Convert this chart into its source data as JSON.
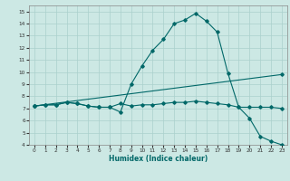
{
  "xlabel": "Humidex (Indice chaleur)",
  "xlim": [
    -0.5,
    23.5
  ],
  "ylim": [
    4,
    15.5
  ],
  "xticks": [
    0,
    1,
    2,
    3,
    4,
    5,
    6,
    7,
    8,
    9,
    10,
    11,
    12,
    13,
    14,
    15,
    16,
    17,
    18,
    19,
    20,
    21,
    22,
    23
  ],
  "yticks": [
    4,
    5,
    6,
    7,
    8,
    9,
    10,
    11,
    12,
    13,
    14,
    15
  ],
  "bg_color": "#cce8e4",
  "grid_color": "#aad0cc",
  "line_color": "#006868",
  "line1_x": [
    0,
    1,
    2,
    3,
    4,
    5,
    6,
    7,
    8,
    9,
    10,
    11,
    12,
    13,
    14,
    15,
    16,
    17,
    18,
    19,
    20,
    21,
    22,
    23
  ],
  "line1_y": [
    7.2,
    7.3,
    7.3,
    7.5,
    7.4,
    7.2,
    7.1,
    7.1,
    6.7,
    9.0,
    10.5,
    11.8,
    12.7,
    14.0,
    14.3,
    14.85,
    14.2,
    13.3,
    9.9,
    7.1,
    6.2,
    4.7,
    4.3,
    4.0
  ],
  "line2_x": [
    0,
    1,
    2,
    3,
    4,
    5,
    6,
    7,
    8,
    9,
    10,
    11,
    12,
    13,
    14,
    15,
    16,
    17,
    18,
    19,
    20,
    21,
    22,
    23
  ],
  "line2_y": [
    7.2,
    7.3,
    7.3,
    7.5,
    7.4,
    7.2,
    7.1,
    7.1,
    7.4,
    7.2,
    7.3,
    7.3,
    7.4,
    7.5,
    7.5,
    7.6,
    7.5,
    7.4,
    7.3,
    7.1,
    7.1,
    7.1,
    7.1,
    7.0
  ],
  "line3_x": [
    0,
    23
  ],
  "line3_y": [
    7.2,
    9.8
  ]
}
